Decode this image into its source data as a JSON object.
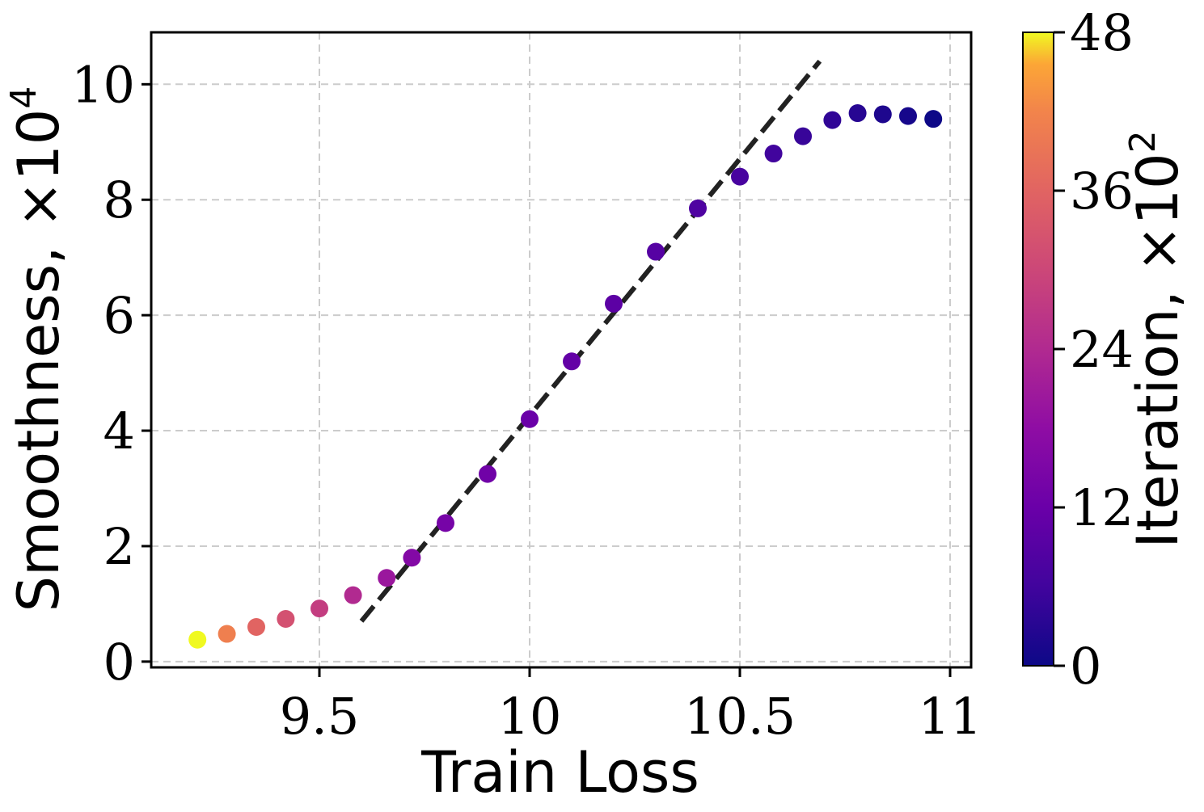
{
  "chart_data": {
    "type": "scatter",
    "title": "",
    "xlabel": "Train Loss",
    "ylabel": "Smoothness, ×10",
    "ylabel_exponent": "4",
    "xlim": [
      9.1,
      11.05
    ],
    "ylim": [
      -0.1,
      10.9
    ],
    "x_ticks": [
      9.5,
      10,
      10.5,
      11
    ],
    "x_tick_labels": [
      "9.5",
      "10",
      "10.5",
      "11"
    ],
    "y_ticks": [
      0,
      2,
      4,
      6,
      8,
      10
    ],
    "y_tick_labels": [
      "0",
      "2",
      "4",
      "6",
      "8",
      "10"
    ],
    "grid": true,
    "colormap": "plasma",
    "colorbar": {
      "label": "Iteration, ×10",
      "label_exponent": "2",
      "range": [
        0,
        48
      ],
      "ticks": [
        0,
        12,
        24,
        36,
        48
      ],
      "tick_labels": [
        "0",
        "12",
        "24",
        "36",
        "48"
      ]
    },
    "series": [
      {
        "points": [
          {
            "x": 10.96,
            "y": 9.4,
            "iter": 0
          },
          {
            "x": 10.9,
            "y": 9.45,
            "iter": 1
          },
          {
            "x": 10.84,
            "y": 9.48,
            "iter": 2
          },
          {
            "x": 10.78,
            "y": 9.5,
            "iter": 3
          },
          {
            "x": 10.72,
            "y": 9.38,
            "iter": 4
          },
          {
            "x": 10.65,
            "y": 9.1,
            "iter": 5
          },
          {
            "x": 10.58,
            "y": 8.8,
            "iter": 6
          },
          {
            "x": 10.5,
            "y": 8.4,
            "iter": 7
          },
          {
            "x": 10.4,
            "y": 7.85,
            "iter": 8
          },
          {
            "x": 10.3,
            "y": 7.1,
            "iter": 9
          },
          {
            "x": 10.2,
            "y": 6.2,
            "iter": 10
          },
          {
            "x": 10.1,
            "y": 5.2,
            "iter": 11
          },
          {
            "x": 10.0,
            "y": 4.2,
            "iter": 12
          },
          {
            "x": 9.9,
            "y": 3.25,
            "iter": 13
          },
          {
            "x": 9.8,
            "y": 2.4,
            "iter": 14
          },
          {
            "x": 9.72,
            "y": 1.8,
            "iter": 16
          },
          {
            "x": 9.66,
            "y": 1.45,
            "iter": 20
          },
          {
            "x": 9.58,
            "y": 1.15,
            "iter": 24
          },
          {
            "x": 9.5,
            "y": 0.92,
            "iter": 28
          },
          {
            "x": 9.42,
            "y": 0.74,
            "iter": 32
          },
          {
            "x": 9.35,
            "y": 0.6,
            "iter": 36
          },
          {
            "x": 9.28,
            "y": 0.48,
            "iter": 41
          },
          {
            "x": 9.21,
            "y": 0.38,
            "iter": 48
          }
        ]
      }
    ],
    "trend_line": {
      "x": [
        9.6,
        10.69
      ],
      "y": [
        0.7,
        10.4
      ],
      "style": "dashed",
      "color": "#222222"
    }
  }
}
